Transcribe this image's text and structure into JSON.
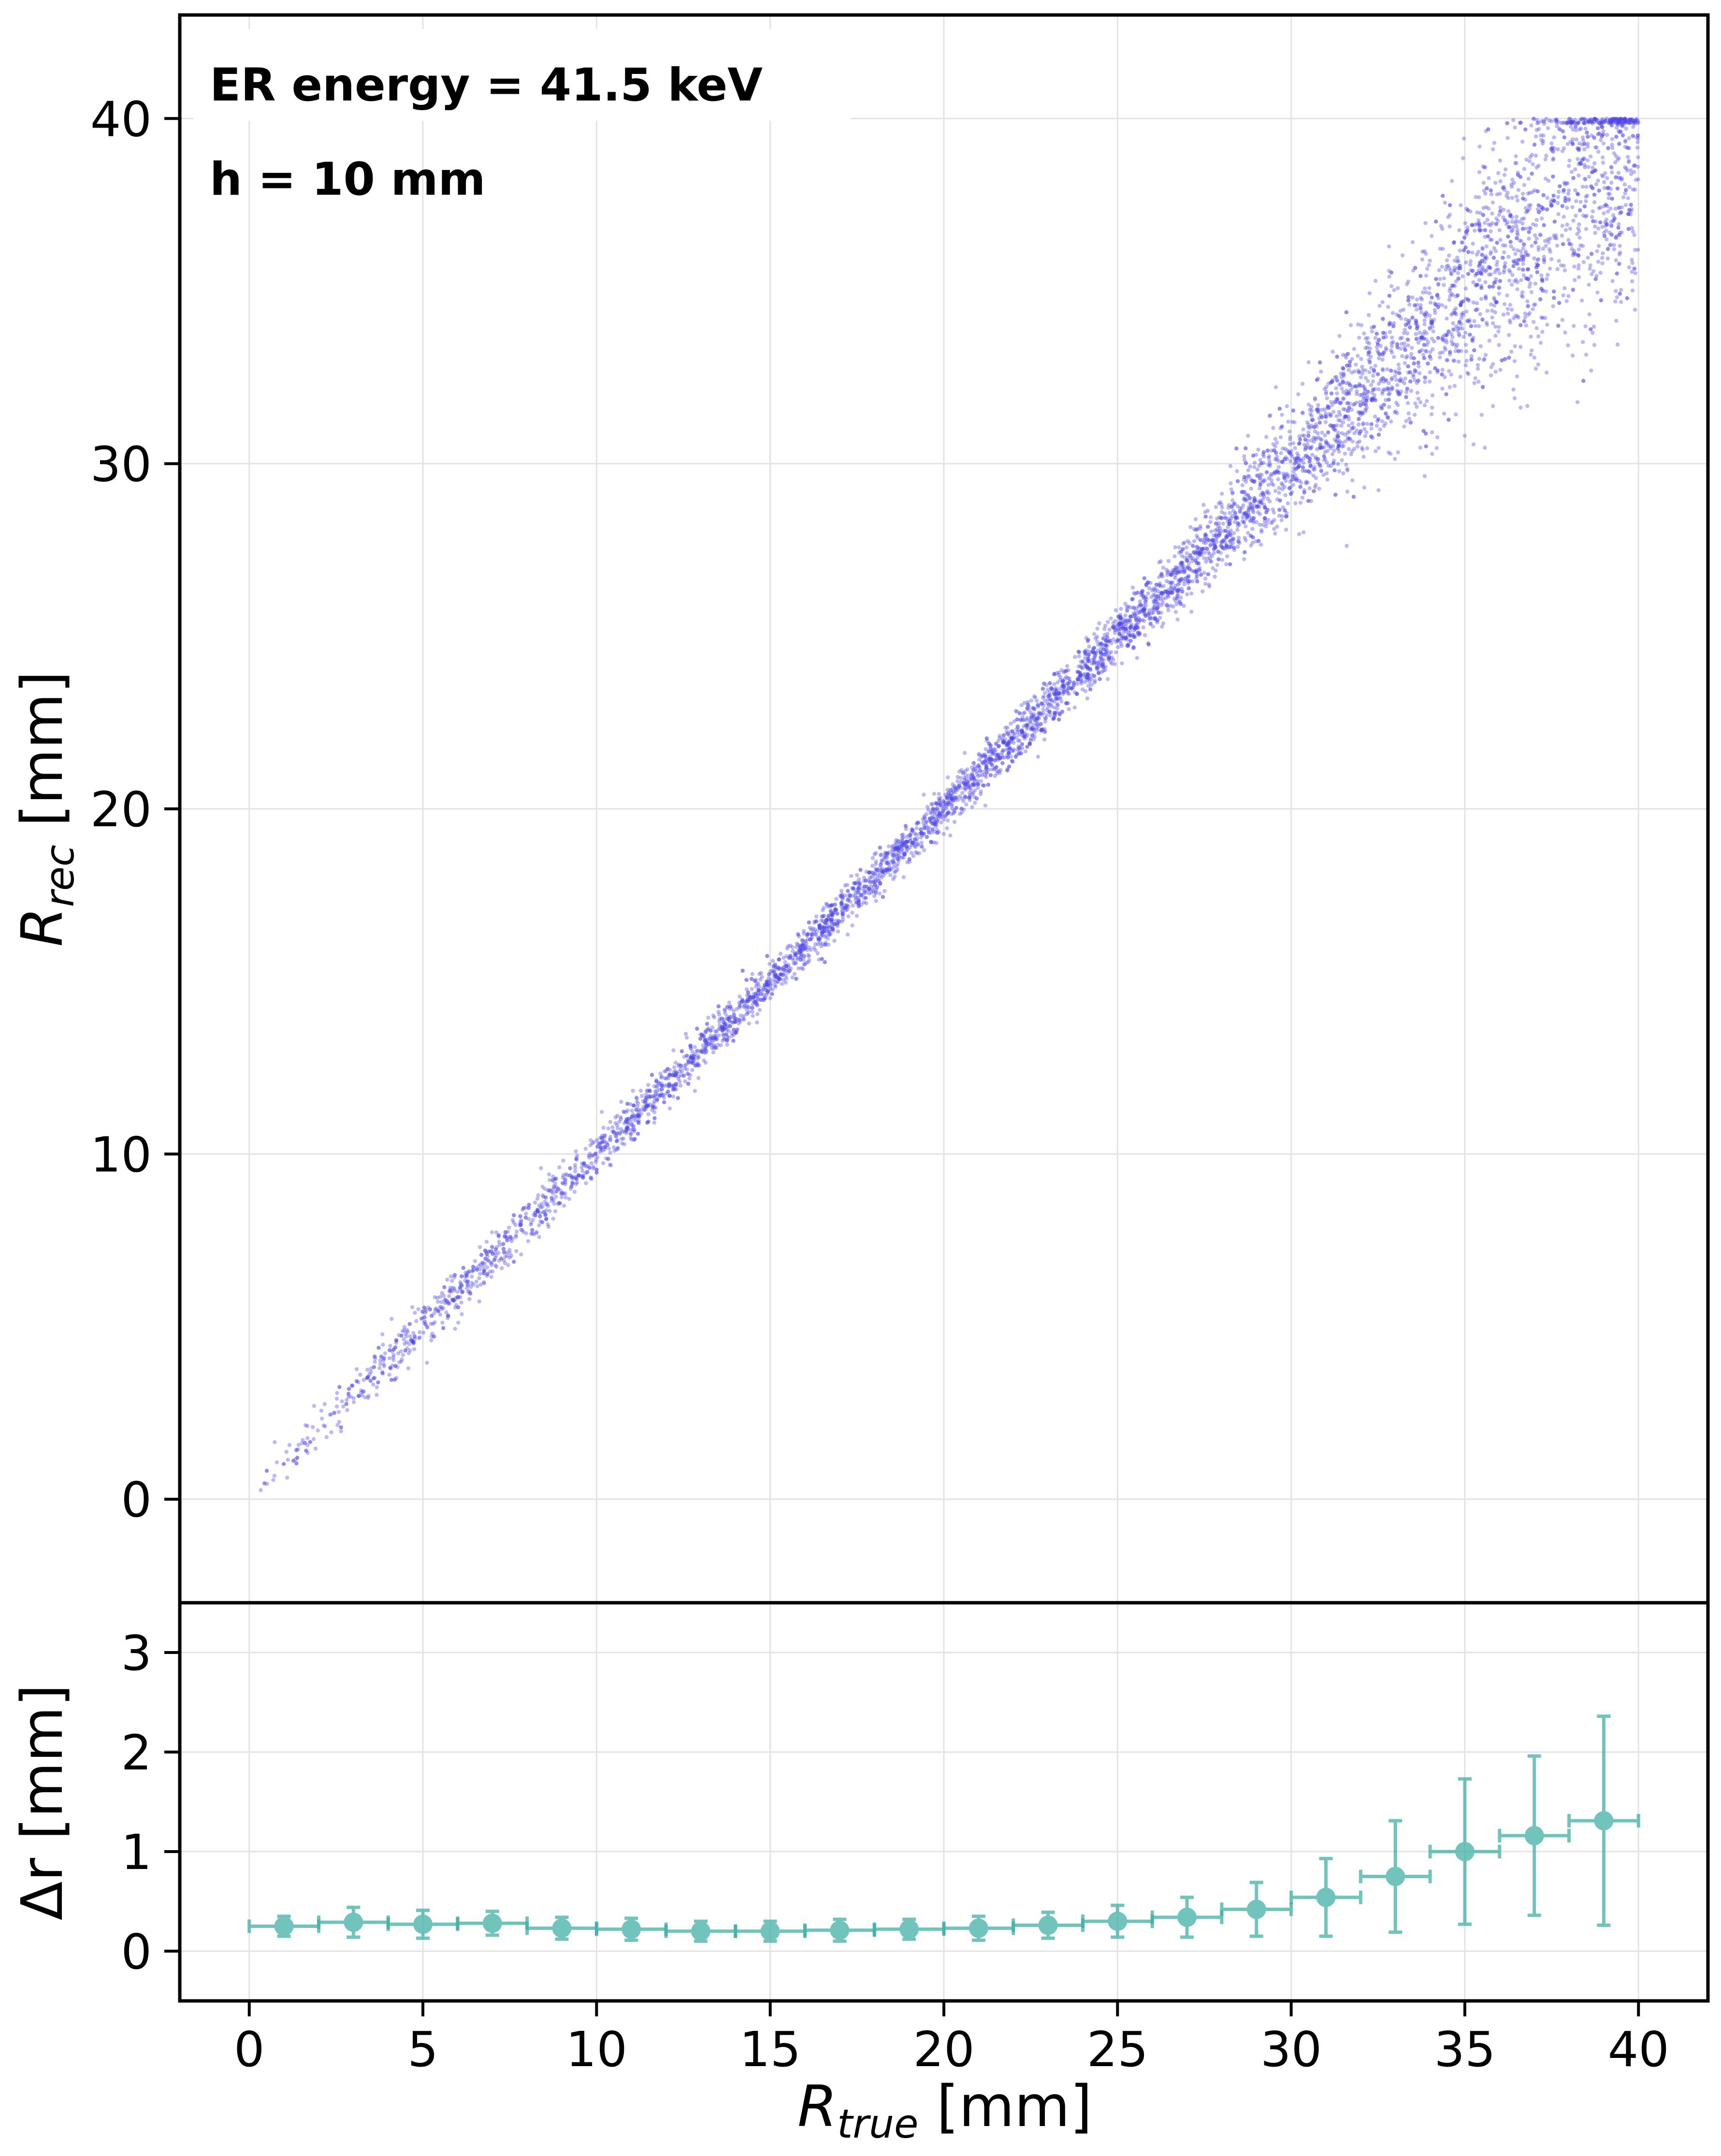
{
  "chart_data": [
    {
      "type": "scatter",
      "panel": "top",
      "annotations": [
        "ER energy = 41.5 keV",
        "h = 10 mm"
      ],
      "ylabel": "R_rec [mm]",
      "ylabel_main": "R",
      "ylabel_sub": "rec",
      "ylabel_unit": " [mm]",
      "xlim": [
        -2,
        42
      ],
      "ylim": [
        -3,
        43
      ],
      "yticks": [
        0,
        10,
        20,
        30,
        40
      ],
      "grid": true,
      "color": "#4f46e5",
      "description_points": "dense band along R_rec = R_true, spread grows above R_true ≈ 27 mm, clipped at 40 mm",
      "band": [
        {
          "x": 0.5,
          "center": 0.6,
          "spread": 0.3
        },
        {
          "x": 5,
          "center": 5.0,
          "spread": 0.35
        },
        {
          "x": 10,
          "center": 10.0,
          "spread": 0.35
        },
        {
          "x": 15,
          "center": 15.0,
          "spread": 0.3
        },
        {
          "x": 20,
          "center": 20.0,
          "spread": 0.3
        },
        {
          "x": 25,
          "center": 25.0,
          "spread": 0.4
        },
        {
          "x": 27,
          "center": 27.0,
          "spread": 0.5
        },
        {
          "x": 29,
          "center": 29.0,
          "spread": 0.7
        },
        {
          "x": 31,
          "center": 31.0,
          "spread": 0.9
        },
        {
          "x": 33,
          "center": 33.0,
          "spread": 1.2
        },
        {
          "x": 35,
          "center": 35.0,
          "spread": 1.6
        },
        {
          "x": 37,
          "center": 36.8,
          "spread": 1.9
        },
        {
          "x": 39,
          "center": 38.5,
          "spread": 2.2
        },
        {
          "x": 40,
          "center": 39.0,
          "spread": 2.5
        }
      ]
    },
    {
      "type": "errorbar",
      "panel": "bottom",
      "xlabel": "R_true [mm]",
      "xlabel_main": "R",
      "xlabel_sub": "true",
      "xlabel_unit": " [mm]",
      "ylabel": "Δr [mm]",
      "xlim": [
        -2,
        42
      ],
      "ylim": [
        -0.5,
        3.5
      ],
      "xticks": [
        0,
        5,
        10,
        15,
        20,
        25,
        30,
        35,
        40
      ],
      "yticks": [
        0,
        1,
        2,
        3
      ],
      "grid": true,
      "color": "#3aaea3",
      "x": [
        1,
        3,
        5,
        7,
        9,
        11,
        13,
        15,
        17,
        19,
        21,
        23,
        25,
        27,
        29,
        31,
        33,
        35,
        37,
        39
      ],
      "x_err": 1,
      "y": [
        0.25,
        0.29,
        0.27,
        0.28,
        0.23,
        0.22,
        0.2,
        0.2,
        0.21,
        0.22,
        0.23,
        0.26,
        0.3,
        0.34,
        0.42,
        0.54,
        0.75,
        1.0,
        1.16,
        1.31
      ],
      "y_err": [
        0.1,
        0.15,
        0.14,
        0.12,
        0.11,
        0.11,
        0.1,
        0.1,
        0.11,
        0.1,
        0.12,
        0.13,
        0.16,
        0.2,
        0.27,
        0.39,
        0.56,
        0.73,
        0.8,
        1.05
      ]
    }
  ]
}
